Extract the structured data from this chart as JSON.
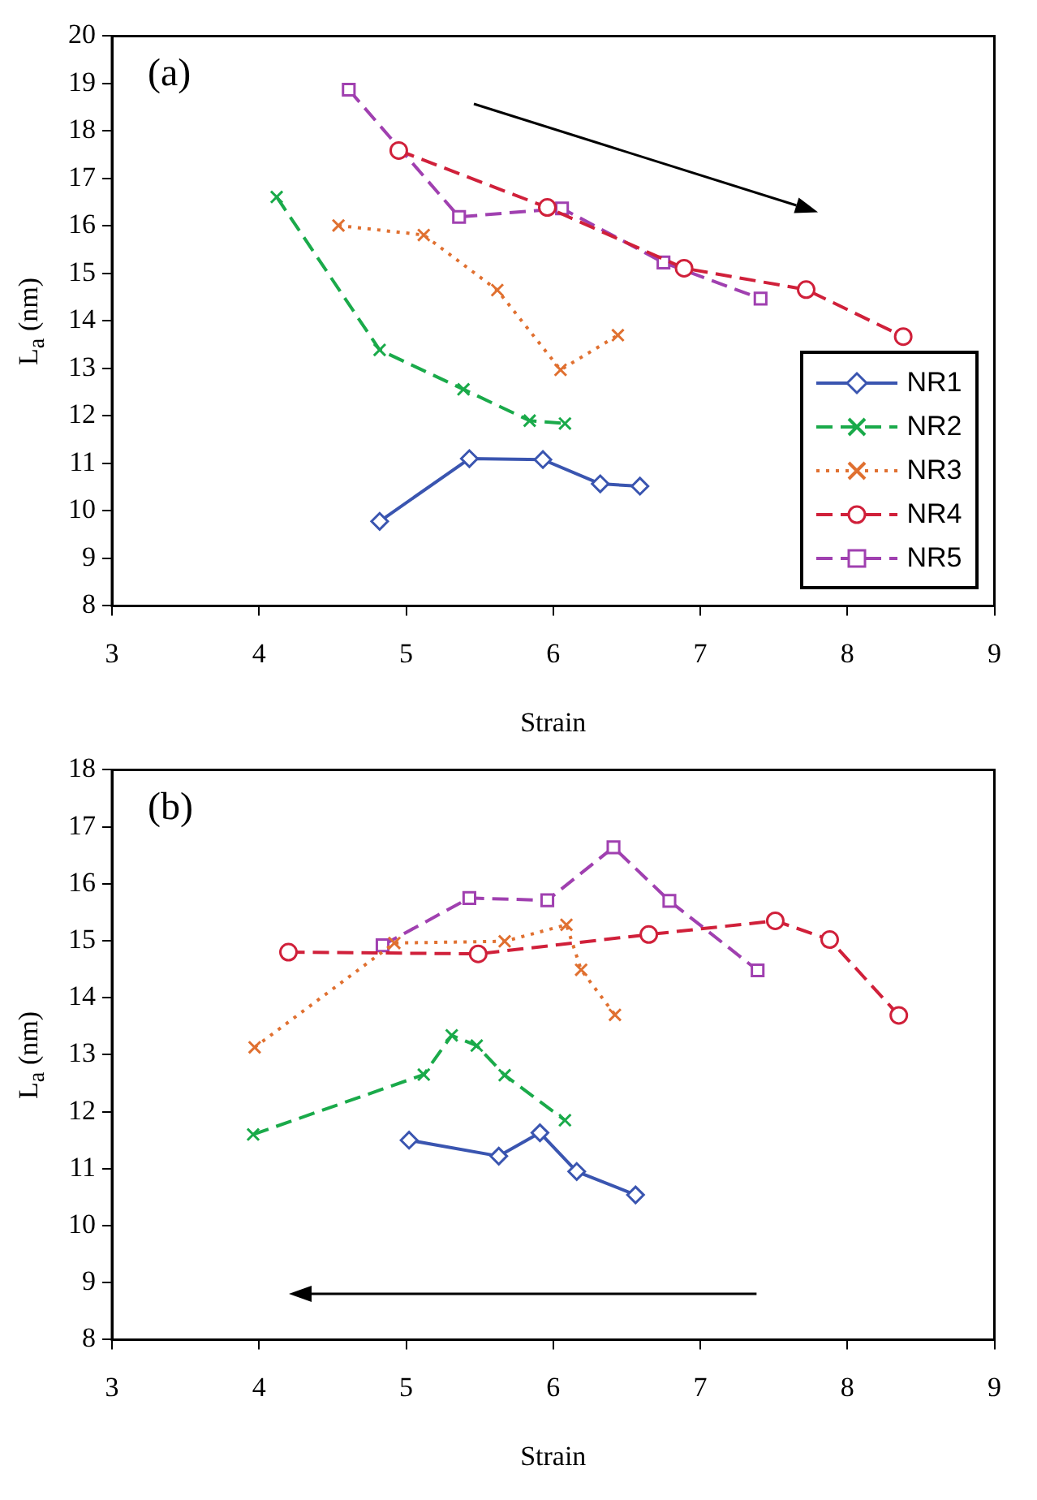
{
  "chart_data": [
    {
      "type": "line",
      "annotations": [
        "(a)"
      ],
      "xlabel": "Strain",
      "ylabel": "L$_{a}$ (nm)",
      "xlim": [
        3,
        9
      ],
      "xticks": [
        3,
        4,
        5,
        6,
        7,
        8,
        9
      ],
      "ylim": [
        8,
        20
      ],
      "yticks": [
        8,
        9,
        10,
        11,
        12,
        13,
        14,
        15,
        16,
        17,
        18,
        19,
        20
      ],
      "grid": false,
      "legend": "bottom right",
      "series": [
        {
          "name": "NR1",
          "color": "#3a55b0",
          "marker": "diamond",
          "line_style": "solid",
          "x": [
            4.82,
            5.43,
            5.93,
            6.32,
            6.59
          ],
          "values": [
            9.78,
            11.1,
            11.08,
            10.57,
            10.52
          ]
        },
        {
          "name": "NR2",
          "color": "#1aaa4a",
          "marker": "cross",
          "line_style": "dashed",
          "x": [
            4.12,
            4.82,
            5.39,
            5.84,
            6.08
          ],
          "values": [
            16.61,
            13.39,
            12.56,
            11.9,
            11.84
          ]
        },
        {
          "name": "NR3",
          "color": "#e07030",
          "marker": "cross",
          "line_style": "dotted",
          "x": [
            4.54,
            5.12,
            5.62,
            6.05,
            6.44
          ],
          "values": [
            16.01,
            15.81,
            14.65,
            12.97,
            13.7
          ]
        },
        {
          "name": "NR4",
          "color": "#d0203a",
          "marker": "circle",
          "line_style": "dashed",
          "x": [
            4.95,
            5.96,
            6.89,
            7.72,
            8.38
          ],
          "values": [
            17.59,
            16.39,
            15.11,
            14.66,
            13.67
          ]
        },
        {
          "name": "NR5",
          "color": "#a040b0",
          "marker": "square",
          "line_style": "dashed",
          "x": [
            4.61,
            5.36,
            6.06,
            6.75,
            7.41
          ],
          "values": [
            18.87,
            16.19,
            16.37,
            15.23,
            14.47
          ]
        }
      ]
    },
    {
      "type": "line",
      "annotations": [
        "(b)"
      ],
      "xlabel": "Strain",
      "ylabel": "L$_{a}$ (nm)",
      "xlim": [
        3,
        9
      ],
      "xticks": [
        3,
        4,
        5,
        6,
        7,
        8,
        9
      ],
      "ylim": [
        8,
        18
      ],
      "yticks": [
        8,
        9,
        10,
        11,
        12,
        13,
        14,
        15,
        16,
        17,
        18
      ],
      "grid": false,
      "series": [
        {
          "color": "#3a55b0",
          "marker": "diamond",
          "line_style": "solid",
          "x": [
            5.02,
            5.63,
            5.91,
            6.16,
            6.56
          ],
          "values": [
            11.5,
            11.22,
            11.63,
            10.95,
            10.54
          ]
        },
        {
          "color": "#1aaa4a",
          "marker": "cross",
          "line_style": "dashed",
          "x": [
            3.96,
            5.12,
            5.31,
            5.48,
            5.67,
            6.08
          ],
          "values": [
            11.6,
            12.65,
            13.34,
            13.16,
            12.64,
            11.85
          ]
        },
        {
          "color": "#e07030",
          "marker": "cross",
          "line_style": "dotted",
          "x": [
            3.97,
            4.92,
            5.67,
            6.09,
            6.19,
            6.42
          ],
          "values": [
            13.13,
            14.96,
            14.99,
            15.28,
            14.49,
            13.7
          ]
        },
        {
          "color": "#d0203a",
          "marker": "circle",
          "line_style": "dashed",
          "x": [
            4.2,
            5.49,
            6.65,
            7.51,
            7.88,
            8.35
          ],
          "values": [
            14.8,
            14.77,
            15.11,
            15.35,
            15.02,
            13.69
          ]
        },
        {
          "color": "#a040b0",
          "marker": "square",
          "line_style": "dashed",
          "x": [
            4.84,
            5.43,
            5.96,
            6.41,
            6.79,
            7.39
          ],
          "values": [
            14.92,
            15.75,
            15.71,
            16.64,
            15.7,
            14.48
          ]
        }
      ]
    }
  ]
}
